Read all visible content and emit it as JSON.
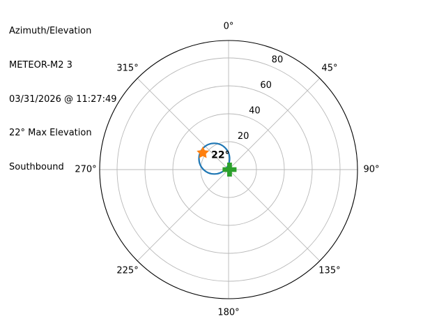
{
  "header": {
    "lines": [
      "Azimuth/Elevation",
      "METEOR-M2 3",
      "03/31/2026 @ 11:27:49",
      "22° Max Elevation",
      "Southbound"
    ]
  },
  "chart_data": {
    "type": "polar",
    "title": "Azimuth/Elevation",
    "satellite": "METEOR-M2 3",
    "timestamp": "03/31/2026 @ 11:27:49",
    "max_elevation_deg": 22,
    "direction": "Southbound",
    "theta_axis": {
      "unit": "azimuth degrees",
      "zero_location": "top (north)",
      "clockwise": true,
      "tick_values": [
        0,
        45,
        90,
        135,
        180,
        225,
        270,
        315
      ],
      "tick_labels": [
        "0°",
        "45°",
        "90°",
        "135°",
        "180°",
        "225°",
        "270°",
        "315°"
      ]
    },
    "r_axis": {
      "unit": "elevation degrees",
      "center_value": 0,
      "edge_value": 90,
      "tick_values": [
        20,
        40,
        60,
        80
      ],
      "tick_labels": [
        "20",
        "40",
        "60",
        "80"
      ],
      "grid": true
    },
    "track": {
      "shape_circle": {
        "center_az": 307.4,
        "center_el": 12.9,
        "radius_el": 11
      },
      "points": [
        {
          "az": 5.5,
          "el": 7.7
        },
        {
          "az": 359.5,
          "el": 11.7
        },
        {
          "az": 351.1,
          "el": 15.4
        },
        {
          "az": 341.4,
          "el": 18.5
        },
        {
          "az": 331.5,
          "el": 20.9
        },
        {
          "az": 321.2,
          "el": 22.5
        },
        {
          "az": 310.9,
          "el": 23.2
        },
        {
          "az": 300.6,
          "el": 23.1
        },
        {
          "az": 290.3,
          "el": 22.0
        },
        {
          "az": 280.1,
          "el": 20.2
        },
        {
          "az": 270.2,
          "el": 17.6
        },
        {
          "az": 261.0,
          "el": 14.2
        },
        {
          "az": 253.0,
          "el": 10.4
        },
        {
          "az": 249.2,
          "el": 6.3
        },
        {
          "az": 271.2,
          "el": 2.4
        },
        {
          "az": 358.4,
          "el": 3.6
        }
      ]
    },
    "peak_marker": {
      "symbol": "star",
      "az": 303,
      "el": 22,
      "label": "22°"
    },
    "origin_marker": {
      "symbol": "filled-plus",
      "az": 90,
      "el": 0.7
    },
    "colors": {
      "track": "#1f77b4",
      "peak_marker": "#ff7f0e",
      "origin_marker": "#2ca02c",
      "grid": "#b8b8b8",
      "outline": "#000000",
      "text": "#000000"
    }
  }
}
